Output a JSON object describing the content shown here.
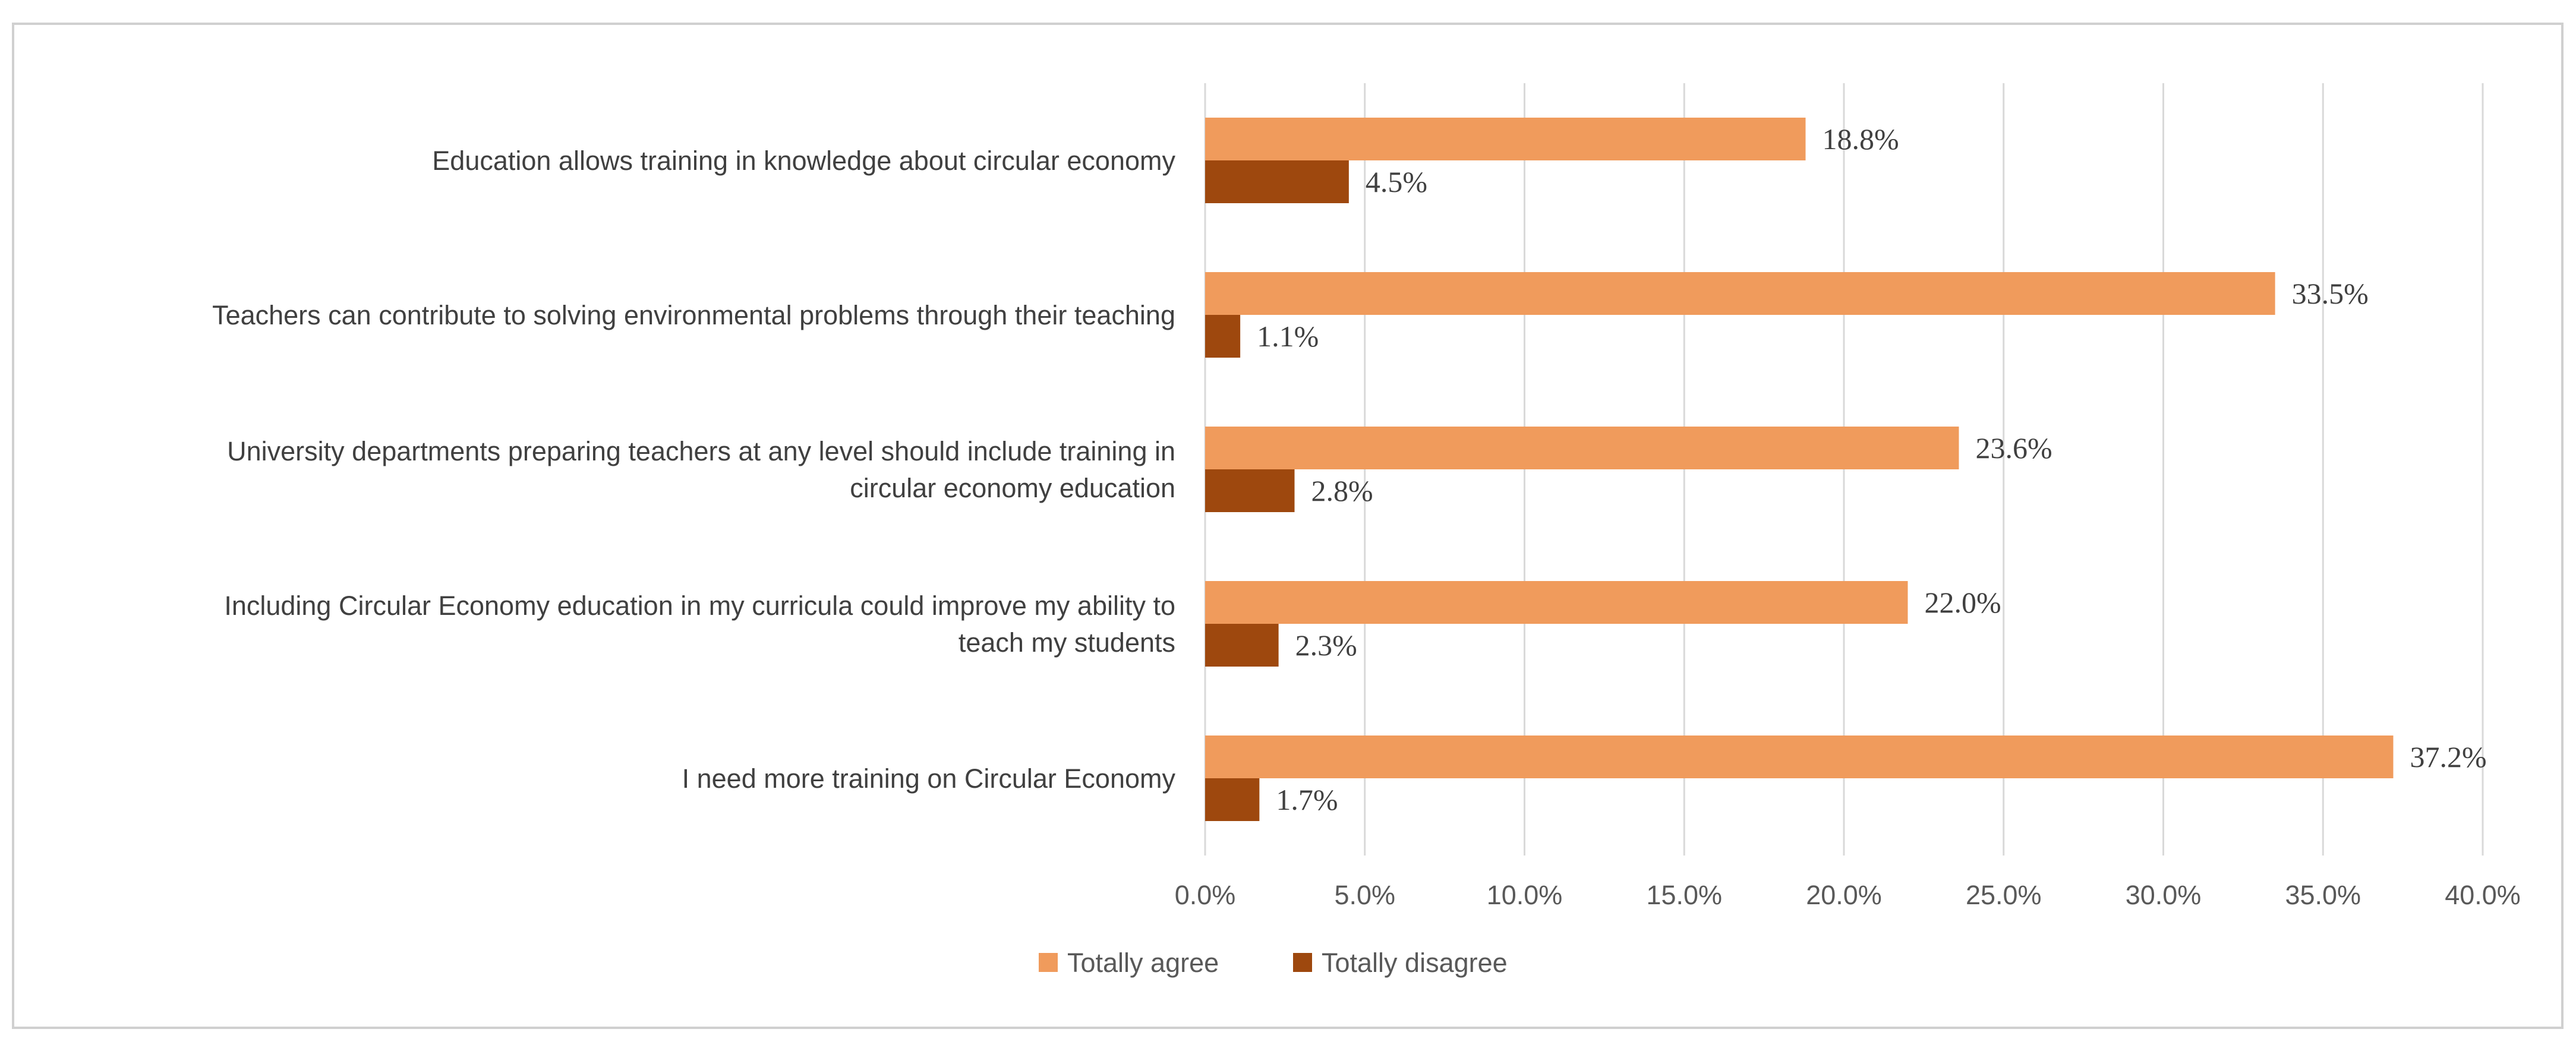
{
  "chart_data": {
    "type": "bar",
    "orientation": "horizontal",
    "title": "",
    "xlabel": "",
    "ylabel": "",
    "xlim": [
      0,
      40
    ],
    "grid": true,
    "legend_position": "bottom",
    "categories": [
      [
        "Education allows training in knowledge about circular economy"
      ],
      [
        "Teachers can contribute to solving environmental problems through their teaching"
      ],
      [
        "University departments preparing teachers at any level should include training in",
        "circular economy education"
      ],
      [
        "Including Circular Economy education in my curricula could improve my ability to",
        "teach my students"
      ],
      [
        "I need more training on Circular Economy"
      ]
    ],
    "series": [
      {
        "name": "Totally agree",
        "color": "#F09B5C",
        "values": [
          18.8,
          33.5,
          23.6,
          22.0,
          37.2
        ],
        "labels": [
          "18.8%",
          "33.5%",
          "23.6%",
          "22.0%",
          "37.2%"
        ]
      },
      {
        "name": "Totally disagree",
        "color": "#9E480E",
        "values": [
          4.5,
          1.1,
          2.8,
          2.3,
          1.7
        ],
        "labels": [
          "4.5%",
          "1.1%",
          "2.8%",
          "2.3%",
          "1.7%"
        ]
      }
    ],
    "ticks": [
      0,
      5,
      10,
      15,
      20,
      25,
      30,
      35,
      40
    ],
    "tick_labels": [
      "0.0%",
      "5.0%",
      "10.0%",
      "15.0%",
      "20.0%",
      "25.0%",
      "30.0%",
      "35.0%",
      "40.0%"
    ]
  }
}
